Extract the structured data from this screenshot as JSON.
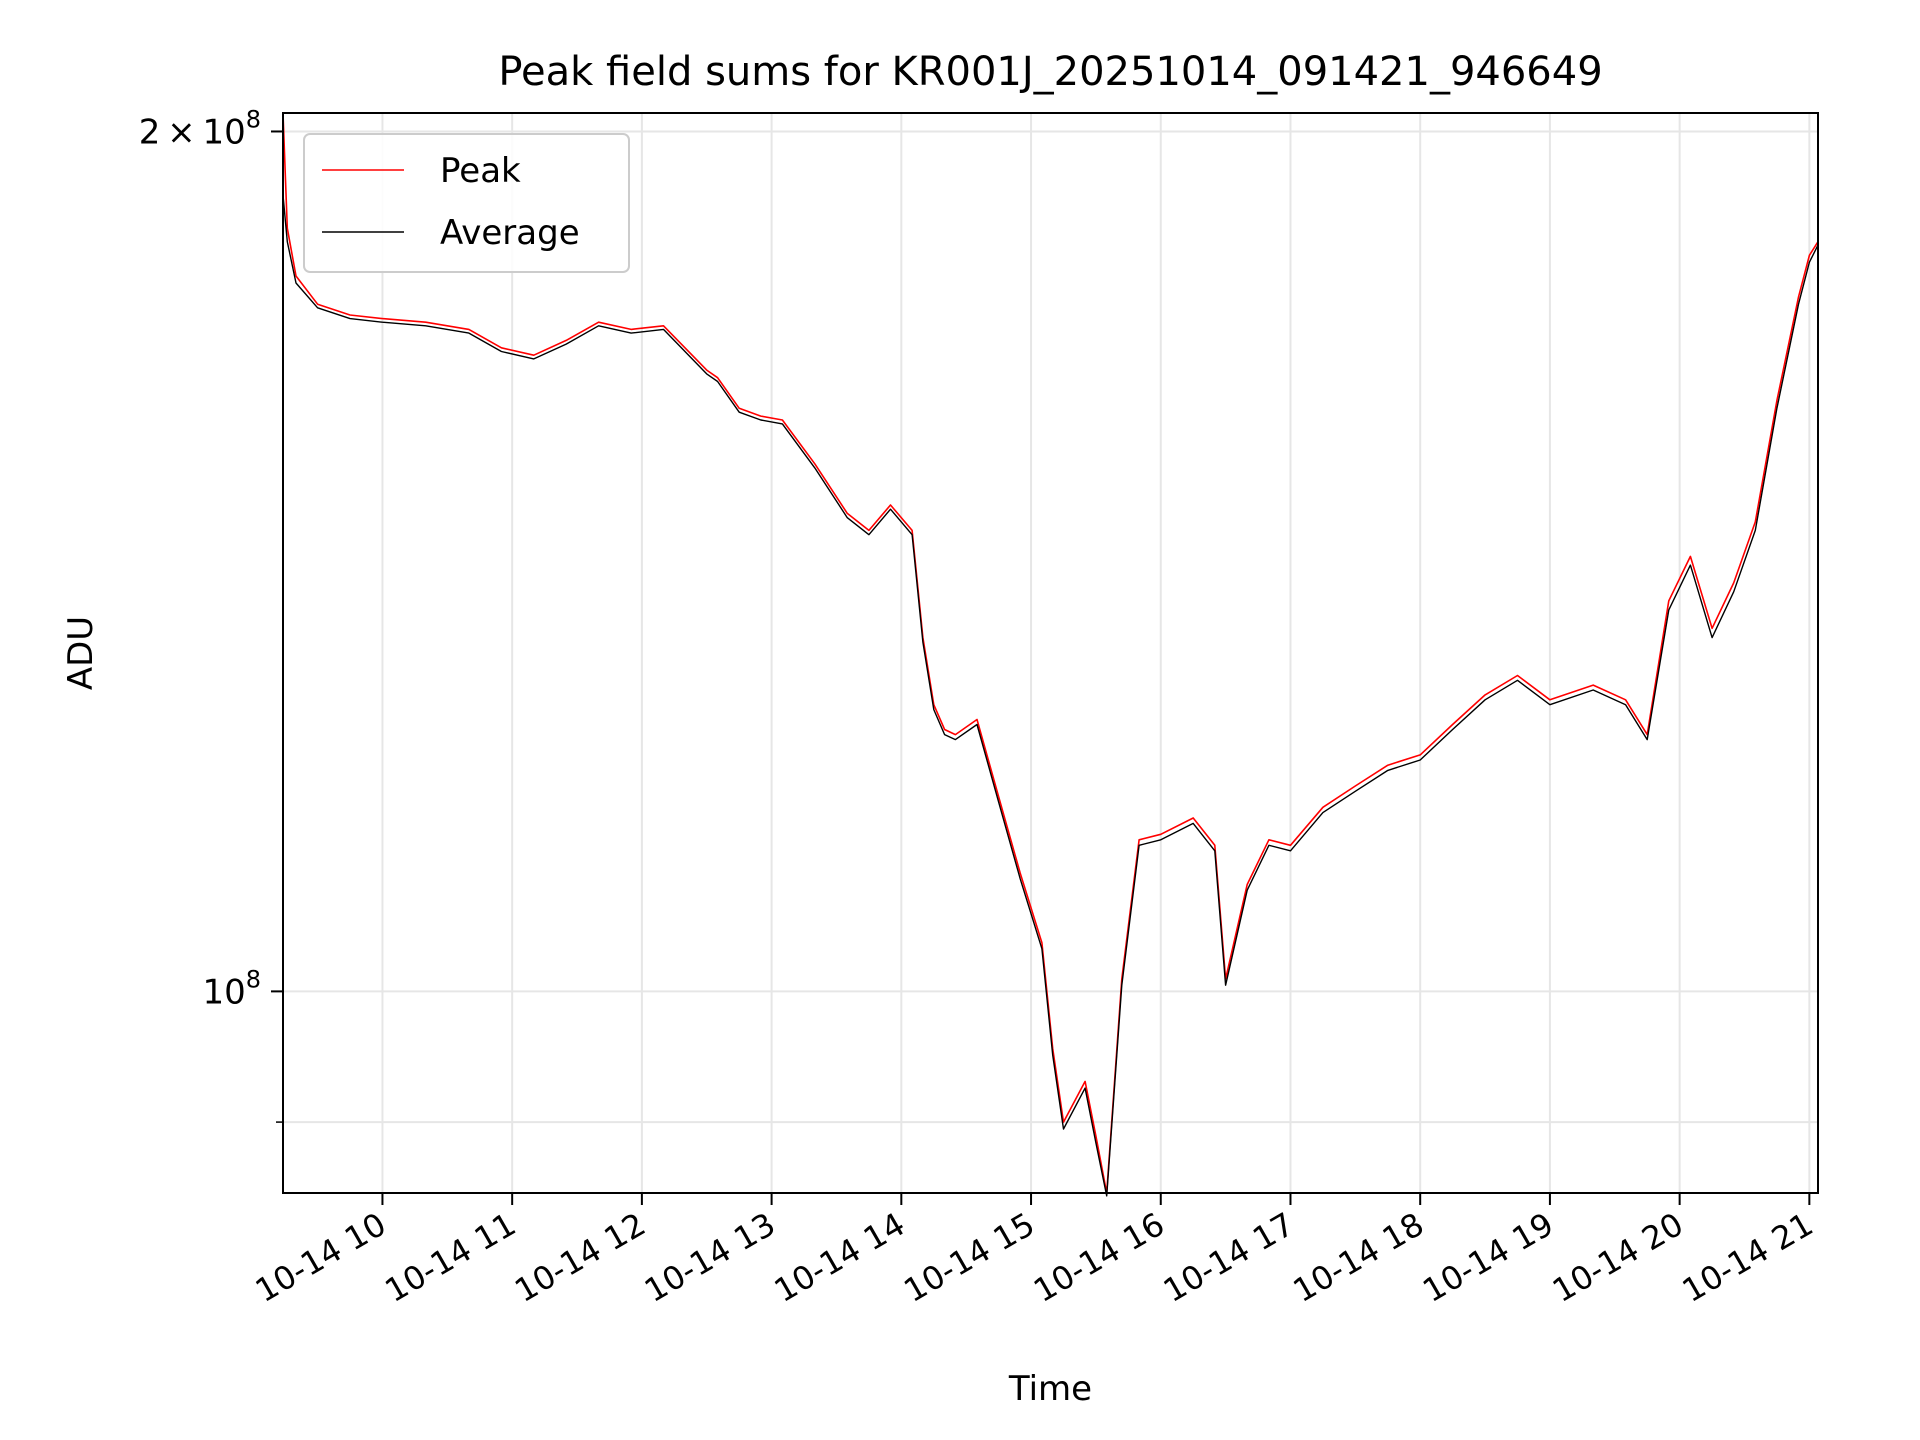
{
  "chart_data": {
    "type": "line",
    "title": "Peak field sums for KR001J_20251014_091421_946649",
    "xlabel": "Time",
    "ylabel": "ADU",
    "y_scale": "log",
    "xlim": [
      "2025-10-14 09:14",
      "2025-10-14 21:04"
    ],
    "ylim": [
      85000000,
      203000000
    ],
    "x_ticks": [
      {
        "value": "2025-10-14 10:00",
        "label": "10-14 10"
      },
      {
        "value": "2025-10-14 11:00",
        "label": "10-14 11"
      },
      {
        "value": "2025-10-14 12:00",
        "label": "10-14 12"
      },
      {
        "value": "2025-10-14 13:00",
        "label": "10-14 13"
      },
      {
        "value": "2025-10-14 14:00",
        "label": "10-14 14"
      },
      {
        "value": "2025-10-14 15:00",
        "label": "10-14 15"
      },
      {
        "value": "2025-10-14 16:00",
        "label": "10-14 16"
      },
      {
        "value": "2025-10-14 17:00",
        "label": "10-14 17"
      },
      {
        "value": "2025-10-14 18:00",
        "label": "10-14 18"
      },
      {
        "value": "2025-10-14 19:00",
        "label": "10-14 19"
      },
      {
        "value": "2025-10-14 20:00",
        "label": "10-14 20"
      },
      {
        "value": "2025-10-14 21:00",
        "label": "10-14 21"
      }
    ],
    "y_major_ticks": [
      {
        "value": 100000000,
        "base": "10",
        "exp": "8"
      },
      {
        "value": 200000000,
        "mant": "2",
        "times": "×",
        "base": "10",
        "exp": "8"
      }
    ],
    "y_minor_ticks": [
      90000000
    ],
    "grid": true,
    "legend": {
      "position": "top-left",
      "entries": [
        "Peak",
        "Average"
      ]
    },
    "series": [
      {
        "name": "Peak",
        "color": "#ff0000",
        "x": [
          "2025-10-14 09:14",
          "2025-10-14 09:16",
          "2025-10-14 09:20",
          "2025-10-14 09:30",
          "2025-10-14 09:45",
          "2025-10-14 10:00",
          "2025-10-14 10:20",
          "2025-10-14 10:40",
          "2025-10-14 10:55",
          "2025-10-14 11:10",
          "2025-10-14 11:25",
          "2025-10-14 11:40",
          "2025-10-14 11:55",
          "2025-10-14 12:10",
          "2025-10-14 12:30",
          "2025-10-14 12:35",
          "2025-10-14 12:45",
          "2025-10-14 12:55",
          "2025-10-14 13:05",
          "2025-10-14 13:20",
          "2025-10-14 13:35",
          "2025-10-14 13:45",
          "2025-10-14 13:55",
          "2025-10-14 14:05",
          "2025-10-14 14:10",
          "2025-10-14 14:15",
          "2025-10-14 14:20",
          "2025-10-14 14:25",
          "2025-10-14 14:35",
          "2025-10-14 14:45",
          "2025-10-14 14:55",
          "2025-10-14 15:05",
          "2025-10-14 15:10",
          "2025-10-14 15:15",
          "2025-10-14 15:25",
          "2025-10-14 15:30",
          "2025-10-14 15:35",
          "2025-10-14 15:42",
          "2025-10-14 15:50",
          "2025-10-14 16:00",
          "2025-10-14 16:15",
          "2025-10-14 16:25",
          "2025-10-14 16:30",
          "2025-10-14 16:40",
          "2025-10-14 16:50",
          "2025-10-14 17:00",
          "2025-10-14 17:15",
          "2025-10-14 17:30",
          "2025-10-14 17:45",
          "2025-10-14 18:00",
          "2025-10-14 18:15",
          "2025-10-14 18:30",
          "2025-10-14 18:45",
          "2025-10-14 19:00",
          "2025-10-14 19:20",
          "2025-10-14 19:35",
          "2025-10-14 19:45",
          "2025-10-14 19:55",
          "2025-10-14 20:05",
          "2025-10-14 20:15",
          "2025-10-14 20:25",
          "2025-10-14 20:35",
          "2025-10-14 20:45",
          "2025-10-14 20:55",
          "2025-10-14 21:00",
          "2025-10-14 21:04"
        ],
        "values": [
          203000000,
          185000000,
          178000000,
          174000000,
          172500000,
          172000000,
          171500000,
          170500000,
          168000000,
          167000000,
          169000000,
          171500000,
          170500000,
          171000000,
          165000000,
          164000000,
          160000000,
          159000000,
          158500000,
          153000000,
          147000000,
          145000000,
          148000000,
          145000000,
          133000000,
          126000000,
          123500000,
          123000000,
          124500000,
          117000000,
          110000000,
          104000000,
          95500000,
          90000000,
          93000000,
          89000000,
          85000000,
          101000000,
          113000000,
          113500000,
          115000000,
          112500000,
          101000000,
          109000000,
          113000000,
          112500000,
          116000000,
          118000000,
          120000000,
          121000000,
          124000000,
          127000000,
          129000000,
          126500000,
          128000000,
          126500000,
          123000000,
          137000000,
          142000000,
          134000000,
          139000000,
          146000000,
          161000000,
          175000000,
          181000000,
          183000000
        ]
      },
      {
        "name": "Average",
        "color": "#000000",
        "x": [
          "2025-10-14 09:14",
          "2025-10-14 09:16",
          "2025-10-14 09:20",
          "2025-10-14 09:30",
          "2025-10-14 09:45",
          "2025-10-14 10:00",
          "2025-10-14 10:20",
          "2025-10-14 10:40",
          "2025-10-14 10:55",
          "2025-10-14 11:10",
          "2025-10-14 11:25",
          "2025-10-14 11:40",
          "2025-10-14 11:55",
          "2025-10-14 12:10",
          "2025-10-14 12:30",
          "2025-10-14 12:35",
          "2025-10-14 12:45",
          "2025-10-14 12:55",
          "2025-10-14 13:05",
          "2025-10-14 13:20",
          "2025-10-14 13:35",
          "2025-10-14 13:45",
          "2025-10-14 13:55",
          "2025-10-14 14:05",
          "2025-10-14 14:10",
          "2025-10-14 14:15",
          "2025-10-14 14:20",
          "2025-10-14 14:25",
          "2025-10-14 14:35",
          "2025-10-14 14:45",
          "2025-10-14 14:55",
          "2025-10-14 15:05",
          "2025-10-14 15:10",
          "2025-10-14 15:15",
          "2025-10-14 15:25",
          "2025-10-14 15:30",
          "2025-10-14 15:35",
          "2025-10-14 15:42",
          "2025-10-14 15:50",
          "2025-10-14 16:00",
          "2025-10-14 16:15",
          "2025-10-14 16:25",
          "2025-10-14 16:30",
          "2025-10-14 16:40",
          "2025-10-14 16:50",
          "2025-10-14 17:00",
          "2025-10-14 17:15",
          "2025-10-14 17:30",
          "2025-10-14 17:45",
          "2025-10-14 18:00",
          "2025-10-14 18:15",
          "2025-10-14 18:30",
          "2025-10-14 18:45",
          "2025-10-14 19:00",
          "2025-10-14 19:20",
          "2025-10-14 19:35",
          "2025-10-14 19:45",
          "2025-10-14 19:55",
          "2025-10-14 20:05",
          "2025-10-14 20:15",
          "2025-10-14 20:25",
          "2025-10-14 20:35",
          "2025-10-14 20:45",
          "2025-10-14 20:55",
          "2025-10-14 21:00",
          "2025-10-14 21:04"
        ],
        "values": [
          190000000,
          183000000,
          177000000,
          173500000,
          172000000,
          171500000,
          171000000,
          170000000,
          167500000,
          166500000,
          168500000,
          171000000,
          170000000,
          170500000,
          164500000,
          163500000,
          159500000,
          158500000,
          158000000,
          152500000,
          146500000,
          144500000,
          147500000,
          144500000,
          132500000,
          125500000,
          123000000,
          122500000,
          124000000,
          116500000,
          109500000,
          103500000,
          95000000,
          89500000,
          92500000,
          88500000,
          84800000,
          100500000,
          112500000,
          113000000,
          114500000,
          112000000,
          100500000,
          108500000,
          112500000,
          112000000,
          115500000,
          117500000,
          119500000,
          120500000,
          123500000,
          126500000,
          128500000,
          126000000,
          127500000,
          126000000,
          122500000,
          136000000,
          141000000,
          133000000,
          138000000,
          145000000,
          160000000,
          174000000,
          180000000,
          182500000
        ]
      }
    ]
  }
}
